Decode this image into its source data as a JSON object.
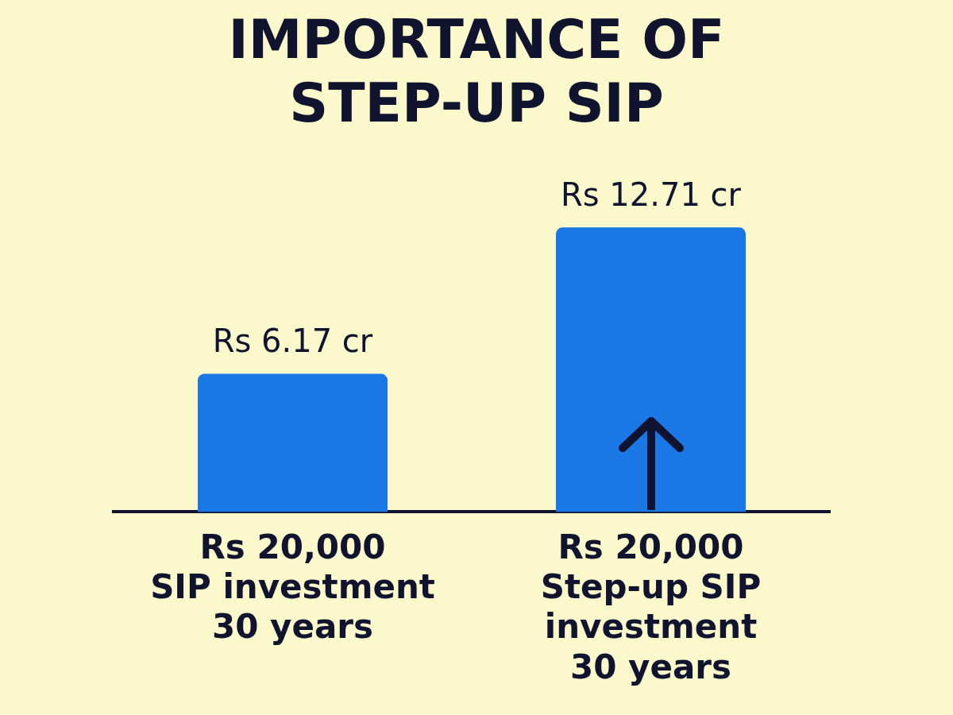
{
  "chart_data": {
    "type": "bar",
    "title": "IMPORTANCE OF STEP-UP SIP",
    "categories": [
      "Rs 20,000\nSIP investment\n30 years",
      "Rs 20,000\nStep-up SIP\ninvestment\n30 years"
    ],
    "values": [
      6.17,
      12.71
    ],
    "value_labels": [
      "Rs 6.17 cr",
      "Rs 12.71 cr"
    ],
    "color": "#1a78e6",
    "grid": false,
    "legend": false
  }
}
